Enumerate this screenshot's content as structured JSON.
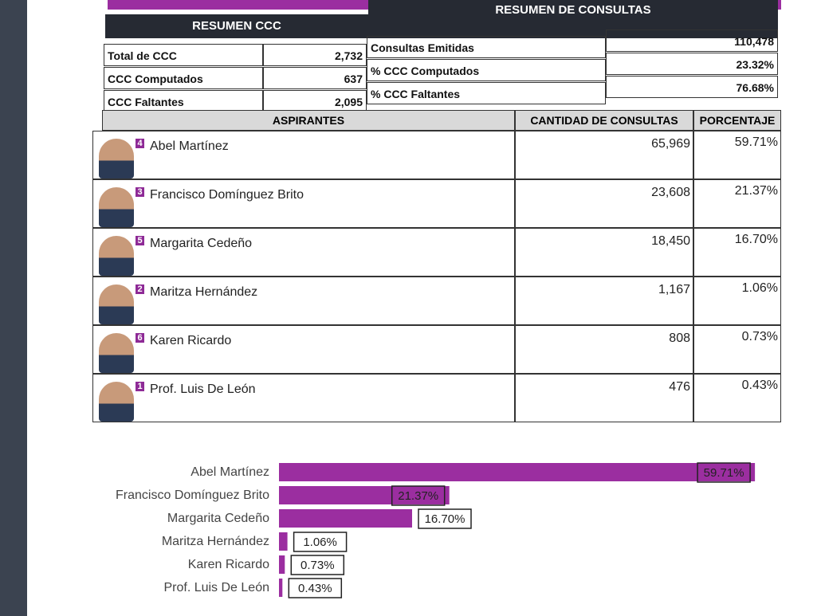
{
  "summary_ccc": {
    "title": "RESUMEN CCC",
    "rows": [
      [
        "Total de CCC",
        "2,732"
      ],
      [
        "CCC Computados",
        "637"
      ],
      [
        "CCC Faltantes",
        "2,095"
      ]
    ]
  },
  "summary_consultas": {
    "title": "RESUMEN DE CONSULTAS",
    "rows": [
      [
        "Consultas Emitidas",
        "110,478"
      ],
      [
        "% CCC Computados",
        "23.32%"
      ],
      [
        "% CCC Faltantes",
        "76.68%"
      ]
    ]
  },
  "table": {
    "headers": [
      "ASPIRANTES",
      "CANTIDAD DE  CONSULTAS",
      "PORCENTAJE"
    ],
    "rows": [
      {
        "badge": "4",
        "name": "Abel Martínez",
        "count": "65,969",
        "percent": "59.71%"
      },
      {
        "badge": "3",
        "name": "Francisco Domínguez Brito",
        "count": "23,608",
        "percent": "21.37%"
      },
      {
        "badge": "5",
        "name": "Margarita Cedeño",
        "count": "18,450",
        "percent": "16.70%"
      },
      {
        "badge": "2",
        "name": "Maritza Hernández",
        "count": "1,167",
        "percent": "1.06%"
      },
      {
        "badge": "6",
        "name": "Karen Ricardo",
        "count": "808",
        "percent": "0.73%"
      },
      {
        "badge": "1",
        "name": "Prof. Luis De León",
        "count": "476",
        "percent": "0.43%"
      }
    ]
  },
  "chart_data": {
    "type": "bar",
    "orientation": "horizontal",
    "categories": [
      "Abel Martínez",
      "Francisco Domínguez Brito",
      "Margarita Cedeño",
      "Maritza Hernández",
      "Karen Ricardo",
      "Prof. Luis De León"
    ],
    "values": [
      59.71,
      21.37,
      16.7,
      1.06,
      0.73,
      0.43
    ],
    "value_labels": [
      "59.71%",
      "21.37%",
      "16.70%",
      "1.06%",
      "0.73%",
      "0.43%"
    ],
    "color": "#9b2ea0"
  }
}
